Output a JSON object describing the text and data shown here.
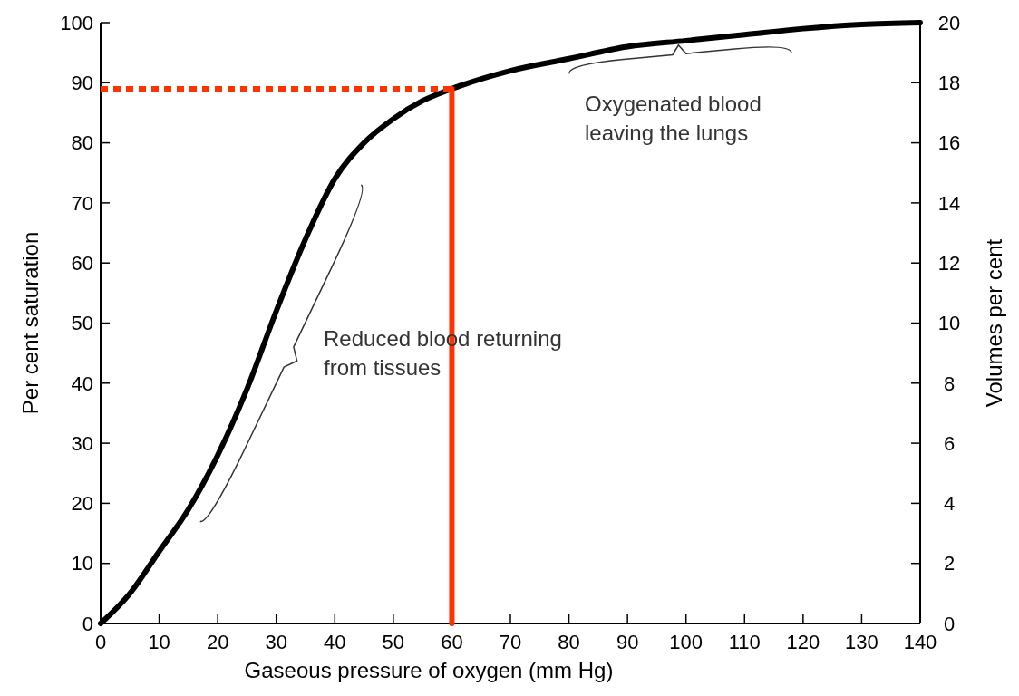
{
  "chart_data": {
    "type": "line",
    "xlabel": "Gaseous pressure of oxygen (mm Hg)",
    "ylabel": "Per cent saturation",
    "y2label": "Volumes per cent",
    "xlim": [
      0,
      140
    ],
    "xticks": [
      0,
      10,
      20,
      30,
      40,
      50,
      60,
      70,
      80,
      90,
      100,
      110,
      120,
      130,
      140
    ],
    "ylim": [
      0,
      100
    ],
    "yticks": [
      0,
      10,
      20,
      30,
      40,
      50,
      60,
      70,
      80,
      90,
      100
    ],
    "y2lim": [
      0,
      20
    ],
    "y2ticks": [
      0,
      2,
      4,
      6,
      8,
      10,
      12,
      14,
      16,
      18,
      20
    ],
    "grid": false,
    "marker": "none",
    "series": [
      {
        "color": "#000000",
        "line_style": "solid",
        "x": [
          0,
          5,
          10,
          15,
          20,
          25,
          30,
          35,
          40,
          45,
          50,
          55,
          60,
          70,
          80,
          90,
          100,
          110,
          120,
          130,
          140
        ],
        "values": [
          0,
          5,
          12,
          19,
          28,
          39,
          52,
          64,
          74,
          80,
          84,
          87,
          89,
          92,
          94,
          96,
          97,
          98,
          99,
          99.7,
          100
        ]
      },
      {
        "color": "#ff3300",
        "line_style": "solid",
        "x": [
          60,
          60
        ],
        "values": [
          0,
          89
        ]
      },
      {
        "color": "#ff3300",
        "line_style": "dotted",
        "x": [
          0,
          60
        ],
        "values": [
          89,
          89
        ]
      }
    ],
    "annotations": [
      "Oxygenated blood\nleaving the lungs",
      "Reduced blood returning\nfrom tissues"
    ]
  }
}
